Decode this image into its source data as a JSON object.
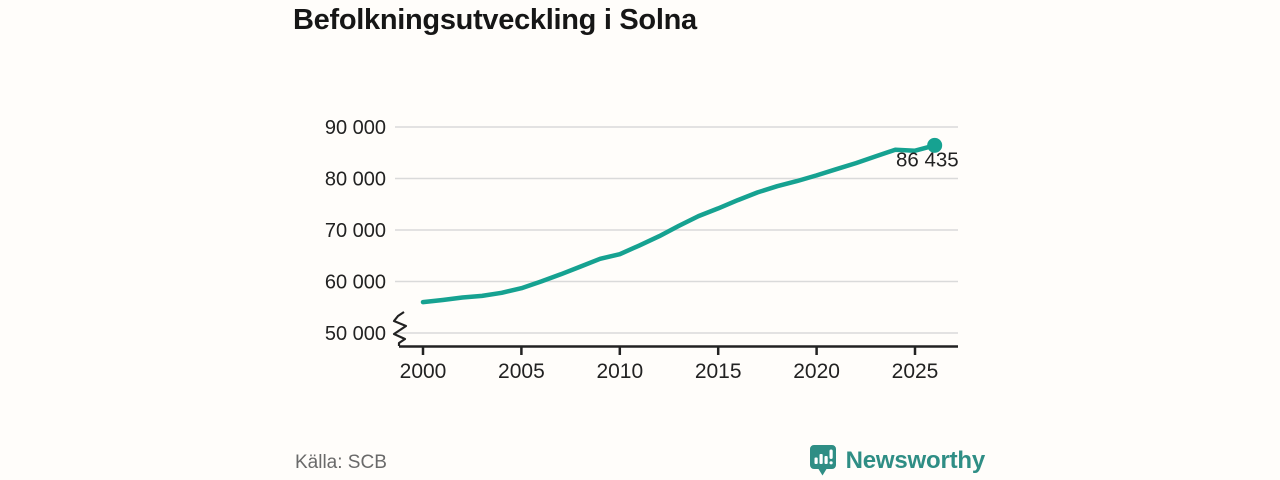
{
  "title": "Befolkningsutveckling i Solna",
  "source": "Källa: SCB",
  "logo": {
    "text": "Newsworthy",
    "icon": "newsworthy-bar-chart-speech-bubble-icon"
  },
  "colors": {
    "background": "#fffdfa",
    "line": "#16a291",
    "grid": "#dadada",
    "axis": "#222222",
    "text": "#222222",
    "muted": "#6a6a6a",
    "logo": "#2f8e85"
  },
  "chart_data": {
    "type": "line",
    "title": "Befolkningsutveckling i Solna",
    "x": [
      2000,
      2001,
      2002,
      2003,
      2004,
      2005,
      2006,
      2007,
      2008,
      2009,
      2010,
      2011,
      2012,
      2013,
      2014,
      2015,
      2016,
      2017,
      2018,
      2019,
      2020,
      2021,
      2022,
      2023,
      2024,
      2025,
      2026
    ],
    "series": [
      {
        "name": "Befolkning",
        "values": [
          56000,
          56400,
          56900,
          57200,
          57800,
          58700,
          60000,
          61400,
          62900,
          64400,
          65300,
          67000,
          68800,
          70800,
          72700,
          74200,
          75800,
          77300,
          78500,
          79500,
          80600,
          81800,
          83000,
          84300,
          85600,
          85400,
          86435
        ]
      }
    ],
    "endpoint_label": "86 435",
    "endpoint_value": 86435,
    "xticks": {
      "values": [
        2000,
        2005,
        2010,
        2015,
        2020,
        2025
      ],
      "labels": [
        "2000",
        "2005",
        "2010",
        "2015",
        "2020",
        "2025"
      ]
    },
    "yticks": {
      "values": [
        50000,
        60000,
        70000,
        80000,
        90000
      ],
      "labels": [
        "50 000",
        "60 000",
        "70 000",
        "80 000",
        "90 000"
      ]
    },
    "ylim": [
      50000,
      90000
    ],
    "axis_break": true,
    "grid": "horizontal",
    "legend": "none",
    "xlabel": "",
    "ylabel": ""
  }
}
